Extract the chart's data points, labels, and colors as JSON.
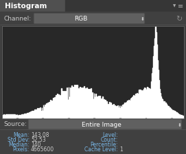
{
  "title": "Histogram",
  "channel_label": "Channel:",
  "channel_value": "RGB",
  "source_label": "Source:",
  "source_value": "Entire Image",
  "bg_color": "#404040",
  "title_bg": "#505050",
  "title_bg2": "#3a3a3a",
  "hist_bg": "#282828",
  "widget_bg": "#585858",
  "text_color": "#cccccc",
  "blue_text": "#7ab8e8",
  "white": "#ffffff",
  "hist_color": "#ffffff",
  "border_color": "#666666",
  "left_labels": [
    "Mean:",
    "Std Dev:",
    "Median:",
    "Pixels:"
  ],
  "left_values": [
    "143,08",
    "52,53",
    "140",
    "4665600"
  ],
  "right_labels": [
    "Level:",
    "Count:",
    "Percentile:",
    "Cache Level:"
  ],
  "right_values": [
    "",
    "",
    "",
    "1"
  ]
}
